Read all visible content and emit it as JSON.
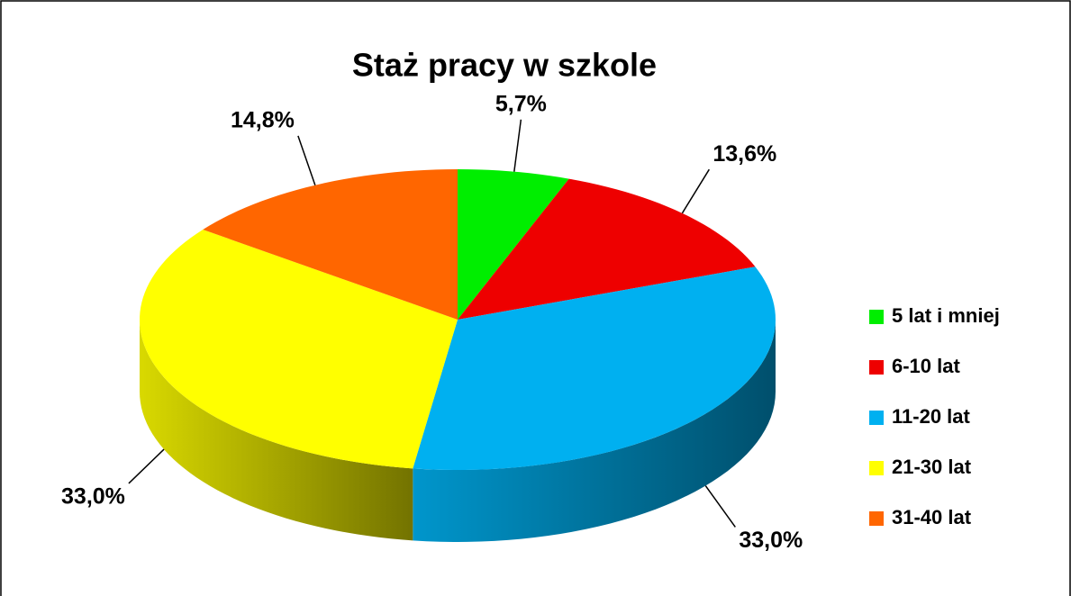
{
  "chart_data": {
    "type": "pie",
    "title": "Staż pracy w szkole",
    "categories": [
      "5 lat i mniej",
      "6-10 lat",
      "11-20 lat",
      "21-30 lat",
      "31-40 lat"
    ],
    "values": [
      5.7,
      13.6,
      33.0,
      33.0,
      14.8
    ],
    "value_labels": [
      "5,7%",
      "13,6%",
      "33,0%",
      "33,0%",
      "14,8%"
    ],
    "colors": [
      "#00ee00",
      "#ee0000",
      "#00b0f0",
      "#ffff00",
      "#ff6600"
    ],
    "legend": "right"
  }
}
